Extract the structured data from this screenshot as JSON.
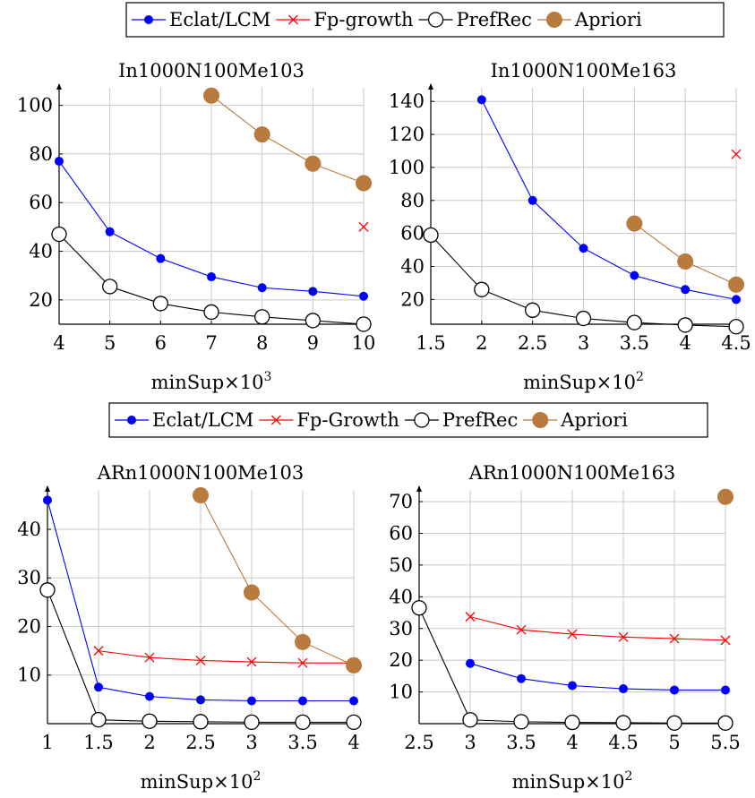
{
  "styles": {
    "Eclat/LCM": {
      "color": "#0000ff",
      "marker": "filled-dot"
    },
    "Fp-growth": {
      "color": "#ff0000",
      "marker": "cross"
    },
    "Fp-Growth": {
      "color": "#ff0000",
      "marker": "cross"
    },
    "PrefRec": {
      "color": "#000000",
      "marker": "open-circle"
    },
    "Apriori": {
      "color": "#b87a3d",
      "marker": "filled-dot-large"
    }
  },
  "legends": [
    {
      "items": [
        "Eclat/LCM",
        "Fp-growth",
        "PrefRec",
        "Apriori"
      ]
    },
    {
      "items": [
        "Eclat/LCM",
        "Fp-Growth",
        "PrefRec",
        "Apriori"
      ]
    }
  ],
  "chart_data": [
    {
      "type": "line",
      "title": "In1000N100Me103",
      "xlabel": "minSup×10",
      "xlabel_exp": "3",
      "xticks": [
        4,
        5,
        6,
        7,
        8,
        9,
        10
      ],
      "xtick_labels": [
        "4",
        "5",
        "6",
        "7",
        "8",
        "9",
        "10"
      ],
      "yticks": [
        20,
        40,
        60,
        80,
        100
      ],
      "xlim": [
        4,
        10
      ],
      "ylim": [
        10,
        105
      ],
      "series": [
        {
          "name": "Eclat/LCM",
          "x": [
            4,
            5,
            6,
            7,
            8,
            9,
            10
          ],
          "y": [
            77,
            48,
            37,
            29.5,
            25,
            23.5,
            21.5
          ]
        },
        {
          "name": "Fp-growth",
          "x": [
            10
          ],
          "y": [
            50
          ]
        },
        {
          "name": "PrefRec",
          "x": [
            4,
            5,
            6,
            7,
            8,
            9,
            10
          ],
          "y": [
            47,
            25.5,
            18.5,
            15,
            13,
            11.5,
            10
          ]
        },
        {
          "name": "Apriori",
          "x": [
            7,
            8,
            9,
            10
          ],
          "y": [
            104,
            88,
            76,
            68
          ]
        }
      ]
    },
    {
      "type": "line",
      "title": "In1000N100Me163",
      "xlabel": "minSup×10",
      "xlabel_exp": "2",
      "xticks": [
        1.5,
        2,
        2.5,
        3,
        3.5,
        4,
        4.5
      ],
      "xtick_labels": [
        "1.5",
        "2",
        "2.5",
        "3",
        "3.5",
        "4",
        "4.5"
      ],
      "yticks": [
        20,
        40,
        60,
        80,
        100,
        120,
        140
      ],
      "xlim": [
        1.5,
        4.5
      ],
      "ylim": [
        5,
        145
      ],
      "series": [
        {
          "name": "Eclat/LCM",
          "x": [
            2,
            2.5,
            3,
            3.5,
            4,
            4.5
          ],
          "y": [
            141,
            80,
            51,
            34.5,
            26,
            20
          ]
        },
        {
          "name": "Fp-growth",
          "x": [
            4.5
          ],
          "y": [
            108
          ]
        },
        {
          "name": "PrefRec",
          "x": [
            1.5,
            2,
            2.5,
            3,
            3.5,
            4,
            4.5
          ],
          "y": [
            59,
            26,
            13.5,
            8.5,
            6,
            4.5,
            3.5
          ]
        },
        {
          "name": "Apriori",
          "x": [
            3.5,
            4,
            4.5
          ],
          "y": [
            66,
            43,
            29
          ]
        }
      ]
    },
    {
      "type": "line",
      "title": "ARn1000N100Me103",
      "xlabel": "minSup×10",
      "xlabel_exp": "2",
      "xticks": [
        1,
        1.5,
        2,
        2.5,
        3,
        3.5,
        4
      ],
      "xtick_labels": [
        "1",
        "1.5",
        "2",
        "2.5",
        "3",
        "3.5",
        "4"
      ],
      "yticks": [
        10,
        20,
        30,
        40
      ],
      "xlim": [
        1,
        4
      ],
      "ylim": [
        0,
        47
      ],
      "series": [
        {
          "name": "Eclat/LCM",
          "x": [
            1,
            1.5,
            2,
            2.5,
            3,
            3.5,
            4
          ],
          "y": [
            46,
            7.5,
            5.6,
            4.9,
            4.7,
            4.7,
            4.7
          ]
        },
        {
          "name": "Fp-Growth",
          "x": [
            1.5,
            2,
            2.5,
            3,
            3.5,
            4
          ],
          "y": [
            15,
            13.6,
            13,
            12.7,
            12.5,
            12.5
          ]
        },
        {
          "name": "PrefRec",
          "x": [
            1,
            1.5,
            2,
            2.5,
            3,
            3.5,
            4
          ],
          "y": [
            27.5,
            0.8,
            0.5,
            0.4,
            0.3,
            0.3,
            0.3
          ]
        },
        {
          "name": "Apriori",
          "x": [
            2.5,
            3,
            3.5,
            4
          ],
          "y": [
            47,
            27,
            16.8,
            12
          ]
        }
      ]
    },
    {
      "type": "line",
      "title": "ARn1000N100Me163",
      "xlabel": "minSup×10",
      "xlabel_exp": "2",
      "xticks": [
        2.5,
        3,
        3.5,
        4,
        4.5,
        5,
        5.5
      ],
      "xtick_labels": [
        "2.5",
        "3",
        "3.5",
        "4",
        "4.5",
        "5",
        "5.5"
      ],
      "yticks": [
        10,
        20,
        30,
        40,
        50,
        60,
        70
      ],
      "xlim": [
        2.5,
        5.5
      ],
      "ylim": [
        0,
        72
      ],
      "series": [
        {
          "name": "Eclat/LCM",
          "x": [
            3,
            3.5,
            4,
            4.5,
            5,
            5.5
          ],
          "y": [
            19,
            14.2,
            12,
            11,
            10.6,
            10.6
          ]
        },
        {
          "name": "Fp-Growth",
          "x": [
            3,
            3.5,
            4,
            4.5,
            5,
            5.5
          ],
          "y": [
            33.7,
            29.6,
            28.2,
            27.3,
            26.8,
            26.3
          ]
        },
        {
          "name": "PrefRec",
          "x": [
            2.5,
            3,
            3.5,
            4,
            4.5,
            5,
            5.5
          ],
          "y": [
            36.5,
            1.2,
            0.6,
            0.4,
            0.3,
            0.2,
            0.2
          ]
        },
        {
          "name": "Apriori",
          "x": [
            5.5
          ],
          "y": [
            71.5
          ]
        }
      ]
    }
  ]
}
